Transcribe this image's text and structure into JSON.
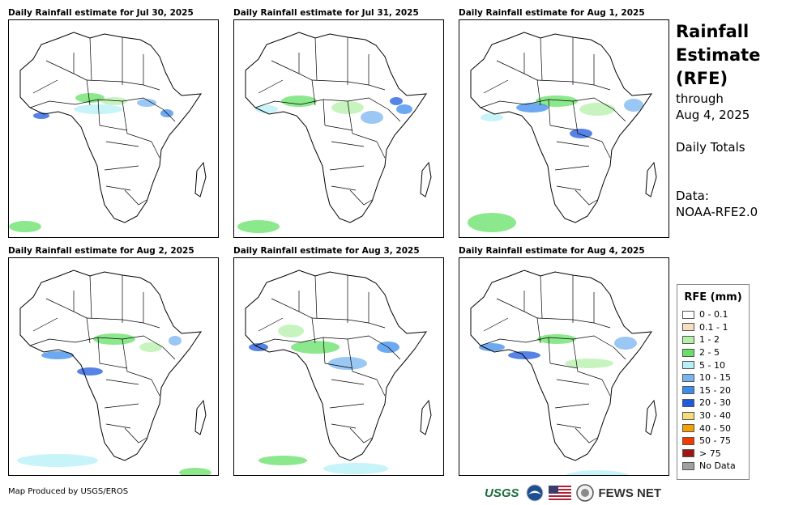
{
  "panels": [
    {
      "title": "Daily Rainfall estimate for Jul 30, 2025"
    },
    {
      "title": "Daily Rainfall estimate for Jul 31, 2025"
    },
    {
      "title": "Daily Rainfall estimate for Aug 1, 2025"
    },
    {
      "title": "Daily Rainfall estimate for Aug 2, 2025"
    },
    {
      "title": "Daily Rainfall estimate for Aug 3, 2025"
    },
    {
      "title": "Daily Rainfall estimate for Aug 4, 2025"
    }
  ],
  "side": {
    "title_line1": "Rainfall",
    "title_line2": "Estimate",
    "title_line3": "(RFE)",
    "through": "through",
    "date": "Aug 4, 2025",
    "totals": "Daily Totals",
    "data_label": "Data:",
    "data_source": "NOAA-RFE2.0"
  },
  "legend": {
    "title": "RFE (mm)",
    "items": [
      {
        "label": "0 - 0.1",
        "color": "#ffffff"
      },
      {
        "label": "0.1 - 1",
        "color": "#f5dfc0"
      },
      {
        "label": "1 - 2",
        "color": "#b4f0a8"
      },
      {
        "label": "2 - 5",
        "color": "#66e066"
      },
      {
        "label": "5 - 10",
        "color": "#b4f0f5"
      },
      {
        "label": "10 - 15",
        "color": "#78b4f0"
      },
      {
        "label": "15 - 20",
        "color": "#3c8ceb"
      },
      {
        "label": "20 - 30",
        "color": "#1e5adc"
      },
      {
        "label": "30 - 40",
        "color": "#f5dc78"
      },
      {
        "label": "40 - 50",
        "color": "#f5a000"
      },
      {
        "label": "50 - 75",
        "color": "#f03c00"
      },
      {
        "label": "> 75",
        "color": "#a01414"
      },
      {
        "label": "No Data",
        "color": "#a0a0a0"
      }
    ]
  },
  "footer": {
    "credit": "Map Produced by USGS/EROS",
    "usgs": "USGS",
    "fews": "FEWS NET"
  }
}
